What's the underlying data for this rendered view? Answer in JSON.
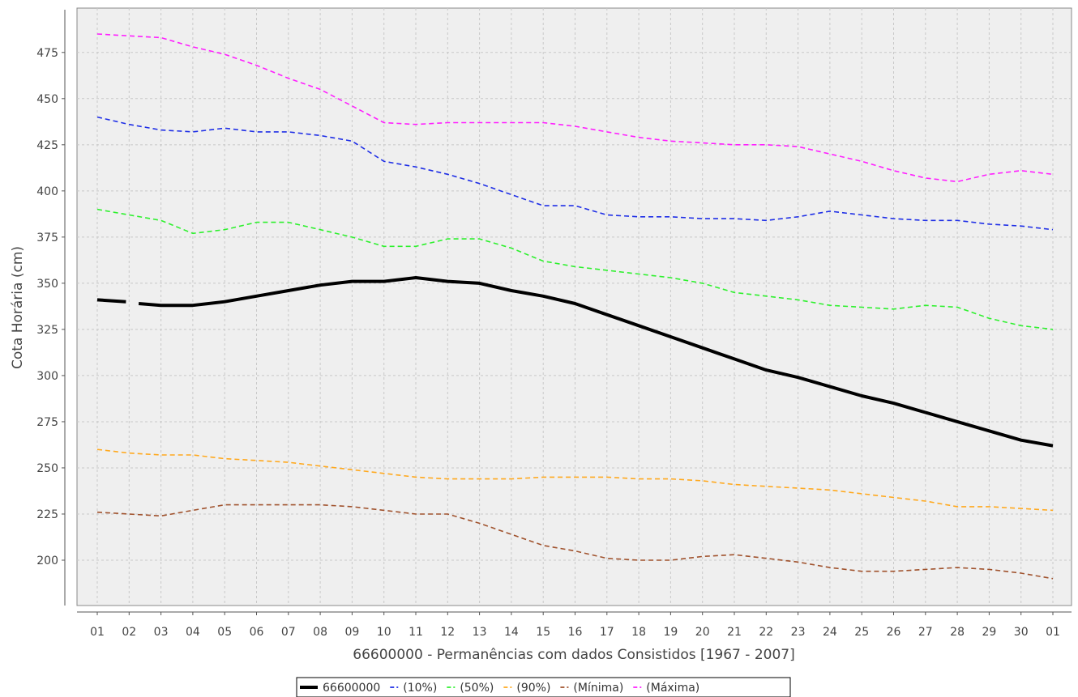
{
  "chart_data": {
    "type": "line",
    "xlabel": "66600000 - Permanências com dados Consistidos [1967 - 2007]",
    "ylabel": "Cota Horária (cm)",
    "categories": [
      "01",
      "02",
      "03",
      "04",
      "05",
      "06",
      "07",
      "08",
      "09",
      "10",
      "11",
      "12",
      "13",
      "14",
      "15",
      "16",
      "17",
      "18",
      "19",
      "20",
      "21",
      "22",
      "23",
      "24",
      "25",
      "26",
      "27",
      "28",
      "29",
      "30",
      "01"
    ],
    "ylim": [
      178,
      500
    ],
    "yticks": [
      200,
      225,
      250,
      275,
      300,
      325,
      350,
      375,
      400,
      425,
      450,
      475
    ],
    "grid": true,
    "legend_position": "bottom",
    "colors": {
      "plot_background": "#efefef",
      "grid": "#c8c8c8"
    },
    "series": [
      {
        "name": "66600000",
        "color": "#000000",
        "style": "solid",
        "segments": [
          {
            "x": [
              1,
              1.9
            ],
            "y": [
              341,
              340
            ]
          },
          {
            "x": [
              2.3,
              3,
              4,
              5,
              6,
              7,
              8,
              9,
              10,
              11,
              12,
              13,
              14,
              15,
              16,
              17,
              18,
              19,
              20,
              21,
              22,
              23,
              24,
              25,
              26,
              27,
              28,
              29,
              30,
              31
            ],
            "y": [
              339,
              338,
              338,
              340,
              343,
              346,
              349,
              351,
              351,
              353,
              351,
              350,
              346,
              343,
              339,
              333,
              327,
              321,
              315,
              309,
              303,
              299,
              294,
              289,
              285,
              280,
              275,
              270,
              265,
              262
            ]
          }
        ]
      },
      {
        "name": "(10%)",
        "color": "#1f2fe6",
        "style": "dashed",
        "x": [
          1,
          2,
          3,
          4,
          5,
          6,
          7,
          8,
          9,
          10,
          11,
          12,
          13,
          14,
          15,
          16,
          17,
          18,
          19,
          20,
          21,
          22,
          23,
          24,
          25,
          26,
          27,
          28,
          29,
          30,
          31
        ],
        "y": [
          440,
          436,
          433,
          432,
          434,
          432,
          432,
          430,
          427,
          416,
          413,
          409,
          404,
          398,
          392,
          392,
          387,
          386,
          386,
          385,
          385,
          384,
          386,
          389,
          387,
          385,
          384,
          384,
          382,
          381,
          379
        ]
      },
      {
        "name": "(50%)",
        "color": "#2ef02e",
        "style": "dashed",
        "x": [
          1,
          2,
          3,
          4,
          5,
          6,
          7,
          8,
          9,
          10,
          11,
          12,
          13,
          14,
          15,
          16,
          17,
          18,
          19,
          20,
          21,
          22,
          23,
          24,
          25,
          26,
          27,
          28,
          29,
          30,
          31
        ],
        "y": [
          390,
          387,
          384,
          377,
          379,
          383,
          383,
          379,
          375,
          370,
          370,
          374,
          374,
          369,
          362,
          359,
          357,
          355,
          353,
          350,
          345,
          343,
          341,
          338,
          337,
          336,
          338,
          337,
          331,
          327,
          325
        ]
      },
      {
        "name": "(90%)",
        "color": "#ffa91f",
        "style": "dashed",
        "x": [
          1,
          2,
          3,
          4,
          5,
          6,
          7,
          8,
          9,
          10,
          11,
          12,
          13,
          14,
          15,
          16,
          17,
          18,
          19,
          20,
          21,
          22,
          23,
          24,
          25,
          26,
          27,
          28,
          29,
          30,
          31
        ],
        "y": [
          260,
          258,
          257,
          257,
          255,
          254,
          253,
          251,
          249,
          247,
          245,
          244,
          244,
          244,
          245,
          245,
          245,
          244,
          244,
          243,
          241,
          240,
          239,
          238,
          236,
          234,
          232,
          229,
          229,
          228,
          227
        ]
      },
      {
        "name": "(Mínima)",
        "color": "#a0522d",
        "style": "dashed",
        "x": [
          1,
          2,
          3,
          4,
          5,
          6,
          7,
          8,
          9,
          10,
          11,
          12,
          13,
          14,
          15,
          16,
          17,
          18,
          19,
          20,
          21,
          22,
          23,
          24,
          25,
          26,
          27,
          28,
          29,
          30,
          31
        ],
        "y": [
          226,
          225,
          224,
          227,
          230,
          230,
          230,
          230,
          229,
          227,
          225,
          225,
          220,
          214,
          208,
          205,
          201,
          200,
          200,
          202,
          203,
          201,
          199,
          196,
          194,
          194,
          195,
          196,
          195,
          193,
          190
        ]
      },
      {
        "name": "(Máxima)",
        "color": "#ff1fff",
        "style": "dashed",
        "x": [
          1,
          2,
          3,
          4,
          5,
          6,
          7,
          8,
          9,
          10,
          11,
          12,
          13,
          14,
          15,
          16,
          17,
          18,
          19,
          20,
          21,
          22,
          23,
          24,
          25,
          26,
          27,
          28,
          29,
          30,
          31
        ],
        "y": [
          485,
          484,
          483,
          478,
          474,
          468,
          461,
          455,
          446,
          437,
          436,
          437,
          437,
          437,
          437,
          435,
          432,
          429,
          427,
          426,
          425,
          425,
          424,
          420,
          416,
          411,
          407,
          405,
          409,
          411,
          409
        ]
      }
    ]
  }
}
